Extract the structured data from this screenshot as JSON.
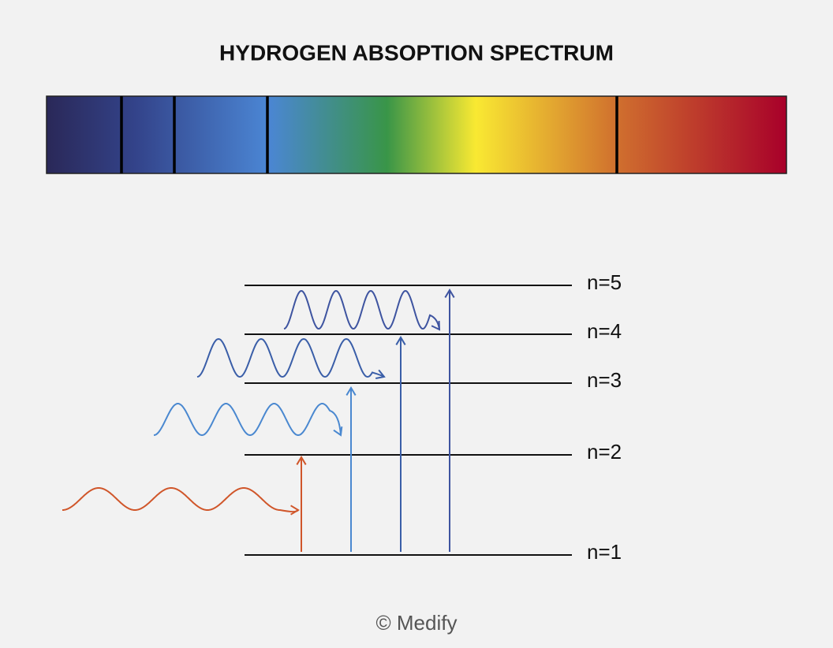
{
  "header": {
    "title": "HYDROGEN ABSOPTION SPECTRUM"
  },
  "levels": [
    {
      "label": "n=5"
    },
    {
      "label": "n=4"
    },
    {
      "label": "n=3"
    },
    {
      "label": "n=2"
    },
    {
      "label": "n=1"
    }
  ],
  "footer": {
    "credit": "© Medify"
  }
}
